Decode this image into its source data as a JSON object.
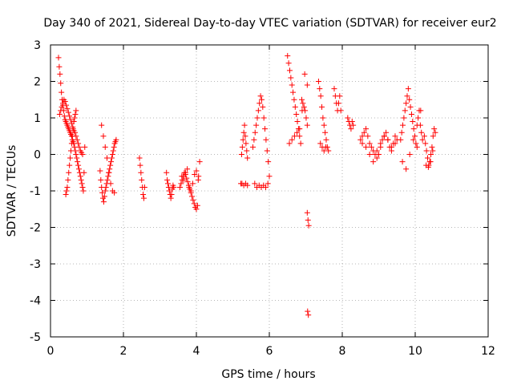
{
  "chart_data": {
    "type": "scatter",
    "title": "Day 340 of 2021, Sidereal Day-to-day VTEC variation (SDTVAR) for receiver eur2",
    "xlabel": "GPS time / hours",
    "ylabel": "SDTVAR / TECUs",
    "xlim": [
      0,
      12
    ],
    "ylim": [
      -5,
      3
    ],
    "xticks": [
      0,
      2,
      4,
      6,
      8,
      10,
      12
    ],
    "yticks": [
      3,
      2,
      1,
      0,
      -1,
      -2,
      -3,
      -4,
      -5
    ],
    "grid": true,
    "marker": "+",
    "color": "#ff0000",
    "series": [
      {
        "name": "SDTVAR",
        "x": [
          0.22,
          0.24,
          0.26,
          0.28,
          0.3,
          0.32,
          0.34,
          0.36,
          0.38,
          0.4,
          0.42,
          0.44,
          0.46,
          0.48,
          0.5,
          0.52,
          0.54,
          0.56,
          0.58,
          0.6,
          0.62,
          0.64,
          0.66,
          0.68,
          0.7,
          0.72,
          0.74,
          0.76,
          0.78,
          0.8,
          0.82,
          0.84,
          0.86,
          0.88,
          0.9,
          0.92,
          0.94,
          0.25,
          0.28,
          0.31,
          0.34,
          0.37,
          0.4,
          0.43,
          0.46,
          0.49,
          0.52,
          0.55,
          0.58,
          0.61,
          0.64,
          0.67,
          0.7,
          0.73,
          0.76,
          0.79,
          0.82,
          0.85,
          0.88,
          0.42,
          0.44,
          0.46,
          0.48,
          0.5,
          0.52,
          0.54,
          0.56,
          0.58,
          0.6,
          0.62,
          0.64,
          0.66,
          0.68,
          0.7,
          1.36,
          1.38,
          1.4,
          1.42,
          1.44,
          1.46,
          1.48,
          1.5,
          1.52,
          1.54,
          1.56,
          1.58,
          1.6,
          1.62,
          1.64,
          1.66,
          1.68,
          1.7,
          1.72,
          1.74,
          1.76,
          1.78,
          1.8,
          1.4,
          1.45,
          1.5,
          1.55,
          1.6,
          1.65,
          1.7,
          1.75,
          2.44,
          2.46,
          2.48,
          2.5,
          2.52,
          2.54,
          2.56,
          2.58,
          3.18,
          3.2,
          3.22,
          3.24,
          3.26,
          3.28,
          3.3,
          3.32,
          3.34,
          3.36,
          3.38,
          3.55,
          3.58,
          3.61,
          3.64,
          3.67,
          3.7,
          3.73,
          3.76,
          3.79,
          3.82,
          3.85,
          3.88,
          3.91,
          3.94,
          3.97,
          4.0,
          4.03,
          4.06,
          4.09,
          3.6,
          3.65,
          3.7,
          3.75,
          3.8,
          3.85,
          3.9,
          3.95,
          4.0,
          4.05,
          5.22,
          5.24,
          5.26,
          5.28,
          5.3,
          5.32,
          5.34,
          5.36,
          5.38,
          5.4,
          5.25,
          5.3,
          5.35,
          5.4,
          5.55,
          5.58,
          5.61,
          5.64,
          5.67,
          5.7,
          5.73,
          5.76,
          5.79,
          5.82,
          5.85,
          5.88,
          5.91,
          5.94,
          5.97,
          6.0,
          5.6,
          5.66,
          5.72,
          5.78,
          5.84,
          5.9,
          5.96,
          6.5,
          6.53,
          6.56,
          6.59,
          6.62,
          6.65,
          6.68,
          6.71,
          6.74,
          6.77,
          6.8,
          6.83,
          6.86,
          6.89,
          6.92,
          6.95,
          6.98,
          7.01,
          7.04,
          6.55,
          6.62,
          6.69,
          6.76,
          6.83,
          6.9,
          6.97,
          7.04,
          7.04,
          7.06,
          7.08,
          7.05,
          7.07,
          7.35,
          7.38,
          7.41,
          7.44,
          7.47,
          7.5,
          7.53,
          7.56,
          7.59,
          7.62,
          7.4,
          7.45,
          7.5,
          7.55,
          7.78,
          7.81,
          7.84,
          7.87,
          7.9,
          7.93,
          7.96,
          8.15,
          8.18,
          8.21,
          8.24,
          8.27,
          8.3,
          8.5,
          8.55,
          8.6,
          8.65,
          8.7,
          8.75,
          8.8,
          8.85,
          8.9,
          8.95,
          9.0,
          9.05,
          9.1,
          9.15,
          9.2,
          9.25,
          9.3,
          9.35,
          9.4,
          9.45,
          9.5,
          8.55,
          8.65,
          8.75,
          8.85,
          8.95,
          9.05,
          9.15,
          9.25,
          9.35,
          9.45,
          9.6,
          9.63,
          9.66,
          9.69,
          9.72,
          9.75,
          9.78,
          9.81,
          9.84,
          9.87,
          9.9,
          9.93,
          9.96,
          9.99,
          10.02,
          10.05,
          10.08,
          10.11,
          10.14,
          10.17,
          10.2,
          9.65,
          9.75,
          9.85,
          9.95,
          10.05,
          10.15,
          10.25,
          10.28,
          10.31,
          10.34,
          10.37,
          10.4,
          10.43,
          10.46,
          10.49,
          10.52,
          10.55,
          10.3,
          10.36,
          10.42,
          10.48
        ],
        "y": [
          2.65,
          2.4,
          2.2,
          1.95,
          1.7,
          1.5,
          1.35,
          1.2,
          1.05,
          0.95,
          0.9,
          0.85,
          0.8,
          0.75,
          0.7,
          0.65,
          0.6,
          0.55,
          0.5,
          0.4,
          0.35,
          0.3,
          0.2,
          0.1,
          0.0,
          -0.1,
          -0.2,
          -0.3,
          -0.4,
          -0.5,
          -0.6,
          -0.7,
          -0.8,
          -0.9,
          -1.0,
          -0.5,
          0.2,
          1.1,
          1.2,
          1.3,
          1.4,
          1.5,
          1.45,
          1.35,
          1.25,
          1.15,
          1.05,
          0.95,
          0.85,
          0.75,
          0.65,
          0.6,
          0.5,
          0.4,
          0.3,
          0.2,
          0.1,
          0.05,
          0.0,
          -1.1,
          -1.0,
          -0.9,
          -0.7,
          -0.5,
          -0.3,
          -0.1,
          0.1,
          0.3,
          0.5,
          0.7,
          0.9,
          1.0,
          1.1,
          1.2,
          -0.45,
          -0.7,
          -0.9,
          -1.05,
          -1.2,
          -1.3,
          -1.15,
          -1.0,
          -0.9,
          -0.8,
          -0.7,
          -0.6,
          -0.5,
          -0.4,
          -0.3,
          -0.2,
          -0.1,
          0.0,
          0.1,
          0.2,
          0.3,
          0.35,
          0.4,
          0.8,
          0.5,
          0.2,
          -0.1,
          -0.5,
          -0.8,
          -1.0,
          -1.05,
          -0.1,
          -0.3,
          -0.5,
          -0.7,
          -0.9,
          -1.1,
          -1.2,
          -0.9,
          -0.5,
          -0.7,
          -0.8,
          -0.9,
          -1.0,
          -1.1,
          -1.2,
          -1.1,
          -0.95,
          -0.85,
          -0.9,
          -0.9,
          -0.8,
          -0.7,
          -0.6,
          -0.5,
          -0.55,
          -0.65,
          -0.75,
          -0.85,
          -0.95,
          -1.05,
          -1.15,
          -1.25,
          -1.35,
          -1.45,
          -1.5,
          -1.4,
          -0.6,
          -0.2,
          -0.6,
          -0.7,
          -0.5,
          -0.4,
          -0.9,
          -1.0,
          -0.8,
          -0.55,
          -0.45,
          -0.7,
          -0.8,
          0.0,
          0.2,
          0.4,
          0.6,
          0.8,
          0.5,
          0.3,
          0.1,
          -0.1,
          -0.8,
          -0.85,
          -0.8,
          -0.85,
          0.2,
          0.4,
          0.6,
          0.8,
          1.0,
          1.2,
          1.4,
          1.6,
          1.5,
          1.3,
          1.0,
          0.7,
          0.4,
          0.1,
          -0.2,
          -0.6,
          -0.8,
          -0.9,
          -0.85,
          -0.9,
          -0.85,
          -0.9,
          -0.8,
          2.7,
          2.5,
          2.3,
          2.1,
          1.9,
          1.7,
          1.5,
          1.3,
          1.1,
          0.9,
          0.7,
          0.5,
          0.3,
          1.5,
          1.4,
          1.3,
          1.2,
          1.0,
          0.8,
          0.3,
          0.4,
          0.5,
          0.6,
          0.7,
          1.2,
          2.2,
          1.9,
          -1.6,
          -1.8,
          -1.95,
          -4.3,
          -4.4,
          2.0,
          1.8,
          1.6,
          1.3,
          1.0,
          0.8,
          0.6,
          0.4,
          0.2,
          0.1,
          0.3,
          0.2,
          0.1,
          0.2,
          1.8,
          1.6,
          1.4,
          1.2,
          1.4,
          1.6,
          1.2,
          1.0,
          0.9,
          0.8,
          0.7,
          0.9,
          0.8,
          0.4,
          0.5,
          0.6,
          0.7,
          0.5,
          0.3,
          0.2,
          0.1,
          0.0,
          -0.1,
          0.0,
          0.2,
          0.4,
          0.5,
          0.6,
          0.4,
          0.2,
          0.1,
          0.3,
          0.5,
          0.4,
          0.3,
          0.2,
          0.0,
          -0.2,
          0.1,
          0.3,
          0.5,
          0.4,
          0.2,
          0.3,
          0.4,
          0.6,
          0.8,
          1.0,
          1.2,
          1.4,
          1.6,
          1.8,
          1.5,
          1.3,
          1.1,
          0.9,
          0.7,
          0.5,
          0.3,
          0.2,
          1.0,
          1.2,
          0.8,
          0.6,
          0.4,
          -0.2,
          -0.4,
          0.0,
          0.4,
          0.8,
          1.2,
          0.5,
          0.3,
          0.1,
          -0.1,
          -0.3,
          -0.2,
          0.0,
          0.2,
          0.5,
          0.7,
          0.6,
          -0.3,
          -0.35,
          -0.2,
          0.1
        ]
      }
    ]
  }
}
